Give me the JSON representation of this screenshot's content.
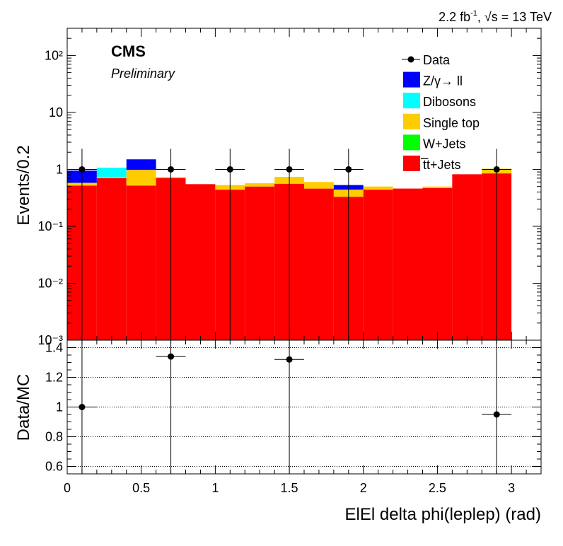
{
  "header": {
    "lumi_prefix": "2.2 fb",
    "lumi_exp": "-1",
    "lumi_rest": ", √s = 13 TeV"
  },
  "labels": {
    "cms": "CMS",
    "preliminary": "Preliminary"
  },
  "colors": {
    "ttbar": "#ff0000",
    "wjets": "#00ff00",
    "single_top": "#ffcc00",
    "dibosons": "#00ffff",
    "zgamma": "#0000ff",
    "data": "#000000"
  },
  "chart_data": [
    {
      "type": "bar",
      "subtype": "stacked_histogram_log",
      "ylabel": "Events/0.2",
      "yscale": "log",
      "ylim": [
        0.001,
        300
      ],
      "xlim": [
        0,
        3.2
      ],
      "y_ticks": [
        "10⁻³",
        "10⁻²",
        "10⁻¹",
        "1",
        "10",
        "10²"
      ],
      "bin_edges": [
        0,
        0.2,
        0.4,
        0.6,
        0.8,
        1.0,
        1.2,
        1.4,
        1.6,
        1.8,
        2.0,
        2.2,
        2.4,
        2.6,
        2.8,
        3.0
      ],
      "legend": {
        "position": "top-right",
        "entries": [
          "Data",
          "Z/γ→ ll",
          "Dibosons",
          "Single top",
          "W+Jets",
          "t̅t+Jets"
        ]
      },
      "series": [
        {
          "name": "t̅t+Jets",
          "color": "#ff0000",
          "values": [
            0.52,
            0.7,
            0.52,
            0.7,
            0.55,
            0.44,
            0.5,
            0.56,
            0.46,
            0.33,
            0.44,
            0.46,
            0.47,
            0.82,
            0.85
          ]
        },
        {
          "name": "W+Jets",
          "color": "#00ff00",
          "values": [
            0,
            0,
            0,
            0,
            0,
            0,
            0,
            0,
            0,
            0,
            0,
            0,
            0,
            0,
            0
          ]
        },
        {
          "name": "Single top",
          "color": "#ffcc00",
          "values": [
            0.06,
            0.04,
            0.46,
            0.04,
            0.0,
            0.09,
            0.07,
            0.18,
            0.14,
            0.11,
            0.06,
            0.0,
            0.03,
            0.0,
            0.18
          ]
        },
        {
          "name": "Dibosons",
          "color": "#00ffff",
          "values": [
            0.0,
            0.33,
            0.0,
            0.0,
            0.0,
            0.0,
            0.0,
            0.0,
            0.0,
            0.0,
            0.0,
            0.0,
            0.0,
            0.0,
            0.0
          ]
        },
        {
          "name": "Z/γ→ ll",
          "color": "#0000ff",
          "values": [
            0.37,
            0.0,
            0.52,
            0.0,
            0.0,
            0.0,
            0.0,
            0.0,
            0.0,
            0.09,
            0.0,
            0.0,
            0.0,
            0.0,
            0.0
          ]
        }
      ],
      "data_points": {
        "name": "Data",
        "x": [
          0.1,
          0.7,
          1.1,
          1.5,
          1.9,
          2.9
        ],
        "y": [
          1,
          1,
          1,
          1,
          1,
          1
        ],
        "xerr": 0.1,
        "yerr_low": [
          0.999,
          0.999,
          0.999,
          0.999,
          0.999,
          0.999
        ],
        "yerr_high": [
          1.3,
          1.3,
          1.3,
          1.3,
          1.3,
          1.3
        ]
      }
    },
    {
      "type": "scatter",
      "subtype": "ratio",
      "ylabel": "Data/MC",
      "xlabel": "ElEl delta phi(leplep) (rad)",
      "xlim": [
        0,
        3.2
      ],
      "ylim": [
        0.55,
        1.45
      ],
      "y_ticks": [
        "0.6",
        "0.8",
        "1",
        "1.2",
        "1.4"
      ],
      "x_ticks": [
        "0",
        "0.5",
        "1",
        "1.5",
        "2",
        "2.5",
        "3"
      ],
      "grid": "horizontal dotted",
      "points": {
        "x": [
          0.1,
          0.7,
          1.5,
          2.9
        ],
        "y": [
          1.0,
          1.34,
          1.32,
          0.95
        ],
        "xerr": 0.1
      }
    }
  ]
}
